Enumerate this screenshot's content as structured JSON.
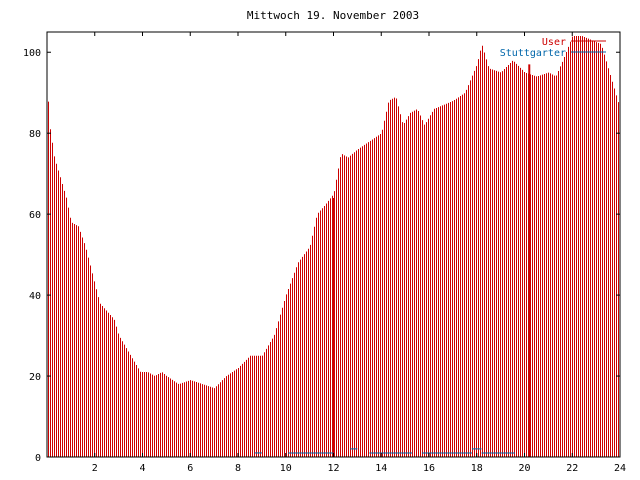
{
  "chart_data": {
    "type": "bar",
    "title": "Mittwoch 19. November 2003",
    "xlim": [
      0,
      24
    ],
    "ylim": [
      0,
      105
    ],
    "x_ticks": [
      2,
      4,
      6,
      8,
      10,
      12,
      14,
      16,
      18,
      20,
      22,
      24
    ],
    "y_ticks": [
      0,
      20,
      40,
      60,
      80,
      100
    ],
    "grid": false,
    "legend_position": "top-right",
    "colors": {
      "user": "#cc0000",
      "stuttgarter": "#0066aa",
      "axis": "#000000"
    },
    "series": [
      {
        "name": "User",
        "anchors_x": [
          0,
          0.1,
          0.3,
          0.5,
          0.8,
          1.0,
          1.3,
          1.6,
          1.9,
          2.2,
          2.5,
          2.8,
          3.0,
          3.3,
          3.6,
          3.9,
          4.2,
          4.5,
          4.8,
          5.0,
          5.5,
          6.0,
          6.5,
          7.0,
          7.5,
          8.0,
          8.5,
          9.0,
          9.5,
          10.0,
          10.5,
          11.0,
          11.3,
          11.6,
          12.0,
          12.3,
          12.6,
          13.0,
          13.5,
          14.0,
          14.3,
          14.6,
          14.9,
          15.2,
          15.5,
          15.8,
          16.2,
          16.6,
          17.0,
          17.5,
          18.0,
          18.2,
          18.5,
          19.0,
          19.5,
          20.0,
          20.5,
          21.0,
          21.3,
          21.6,
          22.0,
          22.4,
          22.8,
          23.2,
          23.5,
          23.8,
          24.0
        ],
        "anchors_y": [
          92,
          82,
          74,
          70,
          64,
          58,
          57,
          52,
          45,
          38,
          36,
          34,
          30,
          27,
          24,
          21,
          21,
          20,
          21,
          20,
          18,
          19,
          18,
          17,
          20,
          22,
          25,
          25,
          30,
          40,
          48,
          52,
          60,
          62,
          65,
          75,
          74,
          76,
          78,
          80,
          88,
          89,
          82,
          85,
          86,
          82,
          86,
          87,
          88,
          90,
          97,
          102,
          96,
          95,
          98,
          95,
          94,
          95,
          94,
          98,
          104,
          104,
          103,
          102,
          96,
          90,
          86
        ],
        "spikes": [
          {
            "x": 12.0,
            "value": 64
          },
          {
            "x": 20.2,
            "value": 97
          }
        ]
      },
      {
        "name": "Stuttgarter",
        "segments": [
          {
            "x": [
              8.7,
              9.0
            ],
            "value": 1
          },
          {
            "x": [
              10.1,
              12.0
            ],
            "value": 1
          },
          {
            "x": [
              12.7,
              13.0
            ],
            "value": 2
          },
          {
            "x": [
              13.5,
              15.3
            ],
            "value": 1
          },
          {
            "x": [
              15.7,
              17.8
            ],
            "value": 1
          },
          {
            "x": [
              17.8,
              18.2
            ],
            "value": 2
          },
          {
            "x": [
              18.2,
              19.6
            ],
            "value": 1
          }
        ]
      }
    ]
  }
}
